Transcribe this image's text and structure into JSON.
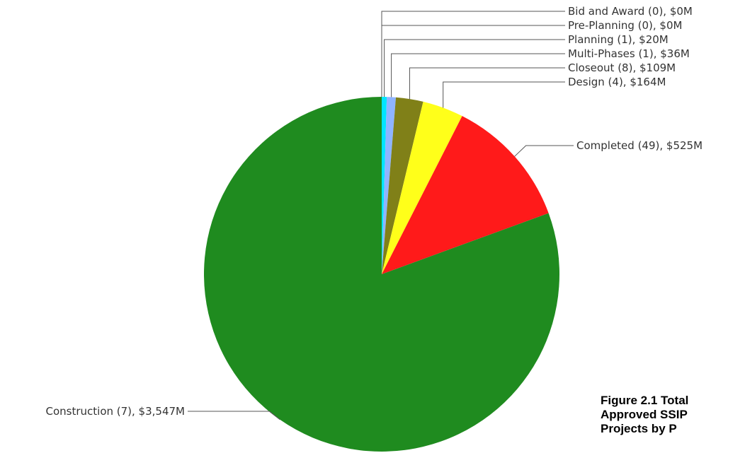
{
  "chart_data": {
    "type": "pie",
    "title": "",
    "slices": [
      {
        "label": "Bid and Award (0), $0M",
        "value": 0,
        "color": "#ff2222"
      },
      {
        "label": "Pre-Planning (0), $0M",
        "value": 0,
        "color": "#7b68ee"
      },
      {
        "label": "Planning (1), $20M",
        "value": 20,
        "color": "#00e5ff"
      },
      {
        "label": "Multi-Phases (1), $36M",
        "value": 36,
        "color": "#8fb4ff"
      },
      {
        "label": "Closeout (8), $109M",
        "value": 109,
        "color": "#808018"
      },
      {
        "label": "Design (4), $164M",
        "value": 164,
        "color": "#ffff1a"
      },
      {
        "label": "Completed (49), $525M",
        "value": 525,
        "color": "#ff1a1a"
      },
      {
        "label": "Construction (7), $3,547M",
        "value": 3547,
        "color": "#1f8b1f"
      }
    ]
  },
  "caption": {
    "line1": "Figure 2.1 Total",
    "line2": "Approved SSIP",
    "line3": "Projects by P"
  }
}
